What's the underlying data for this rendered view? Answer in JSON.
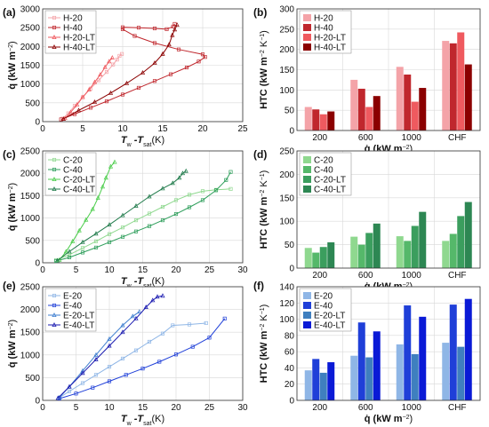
{
  "chart_data": [
    {
      "panel": "(a)",
      "type": "line",
      "xlim": [
        0,
        25
      ],
      "xticks": [
        0,
        5,
        10,
        15,
        20,
        25
      ],
      "ylim": [
        0,
        3000
      ],
      "yticks": [
        0,
        500,
        1000,
        1500,
        2000,
        2500,
        3000
      ],
      "grid": true,
      "legend": "top-left",
      "colors": [
        "#f4a3a8",
        "#c0272d",
        "#ef5a5f",
        "#8b0000"
      ],
      "series": [
        {
          "name": "H-20",
          "marker": "square",
          "points": [
            [
              2.5,
              80
            ],
            [
              3.2,
              220
            ],
            [
              4,
              420
            ],
            [
              5,
              650
            ],
            [
              6,
              880
            ],
            [
              7,
              1100
            ],
            [
              8,
              1320
            ],
            [
              8.8,
              1520
            ],
            [
              9.3,
              1650
            ],
            [
              9.6,
              1750
            ],
            [
              9.9,
              1800
            ]
          ]
        },
        {
          "name": "H-40",
          "marker": "square",
          "points": [
            [
              2.3,
              60
            ],
            [
              4,
              200
            ],
            [
              6,
              370
            ],
            [
              8,
              540
            ],
            [
              10,
              720
            ],
            [
              12,
              900
            ],
            [
              14,
              1080
            ],
            [
              16,
              1260
            ],
            [
              18,
              1440
            ],
            [
              19.5,
              1600
            ],
            [
              20.3,
              1720
            ],
            [
              20,
              1790
            ],
            [
              17,
              1920
            ],
            [
              14,
              2090
            ],
            [
              11.5,
              2280
            ],
            [
              10,
              2460
            ],
            [
              10,
              2510
            ],
            [
              12,
              2500
            ],
            [
              14,
              2480
            ],
            [
              15.5,
              2460
            ],
            [
              16.3,
              2530
            ],
            [
              16.5,
              2600
            ]
          ]
        },
        {
          "name": "H-20-LT",
          "marker": "triangle",
          "points": [
            [
              2.8,
              90
            ],
            [
              3.5,
              250
            ],
            [
              4.3,
              450
            ],
            [
              5,
              650
            ],
            [
              5.8,
              850
            ],
            [
              6.5,
              1050
            ],
            [
              7.2,
              1250
            ],
            [
              7.8,
              1450
            ],
            [
              8.3,
              1600
            ],
            [
              8.7,
              1700
            ]
          ]
        },
        {
          "name": "H-40-LT",
          "marker": "triangle",
          "points": [
            [
              2.6,
              70
            ],
            [
              4.5,
              300
            ],
            [
              6.5,
              520
            ],
            [
              8.5,
              760
            ],
            [
              10.5,
              1020
            ],
            [
              12.5,
              1300
            ],
            [
              14,
              1560
            ],
            [
              15,
              1800
            ],
            [
              15.8,
              2050
            ],
            [
              16.2,
              2300
            ],
            [
              16.5,
              2450
            ],
            [
              16.8,
              2570
            ]
          ]
        }
      ],
      "xlabel_main": "T",
      "xlabel_sub1": "w",
      "xlabel_mid": " -T",
      "xlabel_sub2": "sat",
      "xlabel_unit": "(K)",
      "ylabel_main": "q̇ (kW m",
      "ylabel_exp": "−2",
      "ylabel_end": ")"
    },
    {
      "panel": "(b)",
      "type": "bar",
      "categories": [
        "200",
        "600",
        "1000",
        "CHF"
      ],
      "ylim": [
        0,
        300
      ],
      "yticks": [
        0,
        50,
        100,
        150,
        200,
        250,
        300
      ],
      "grid": true,
      "legend": "top-left",
      "colors": [
        "#f4a3a8",
        "#c0272d",
        "#ef5a5f",
        "#8b0000"
      ],
      "series": [
        {
          "name": "H-20",
          "values": [
            58,
            125,
            157,
            221
          ]
        },
        {
          "name": "H-40",
          "values": [
            52,
            103,
            138,
            215
          ]
        },
        {
          "name": "H-20-LT",
          "values": [
            40,
            58,
            71,
            242
          ]
        },
        {
          "name": "H-40-LT",
          "values": [
            47,
            85,
            105,
            163
          ]
        }
      ],
      "xlabel_main": "q̇ (kW m",
      "xlabel_exp": "−2",
      "xlabel_end": ")",
      "ylabel_main": "HTC (kW m",
      "ylabel_exp1": "−2",
      "ylabel_mid": " K",
      "ylabel_exp2": "−1",
      "ylabel_end": ")"
    },
    {
      "panel": "(c)",
      "type": "line",
      "xlim": [
        0,
        30
      ],
      "xticks": [
        0,
        5,
        10,
        15,
        20,
        25,
        30
      ],
      "ylim": [
        0,
        2500
      ],
      "yticks": [
        0,
        500,
        1000,
        1500,
        2000,
        2500
      ],
      "grid": true,
      "legend": "top-left",
      "colors": [
        "#8fd88f",
        "#2e9e5b",
        "#4ccd4c",
        "#1f7a4a"
      ],
      "series": [
        {
          "name": "C-20",
          "marker": "square",
          "points": [
            [
              2,
              60
            ],
            [
              4,
              180
            ],
            [
              6,
              330
            ],
            [
              8,
              480
            ],
            [
              10,
              640
            ],
            [
              12,
              790
            ],
            [
              14,
              950
            ],
            [
              16,
              1100
            ],
            [
              18,
              1250
            ],
            [
              20,
              1400
            ],
            [
              22,
              1520
            ],
            [
              24,
              1600
            ],
            [
              26,
              1630
            ],
            [
              28.2,
              1650
            ]
          ]
        },
        {
          "name": "C-40",
          "marker": "square",
          "points": [
            [
              2,
              40
            ],
            [
              4,
              120
            ],
            [
              6,
              230
            ],
            [
              8,
              340
            ],
            [
              10,
              460
            ],
            [
              12,
              580
            ],
            [
              14,
              700
            ],
            [
              16,
              820
            ],
            [
              18,
              950
            ],
            [
              20,
              1090
            ],
            [
              22,
              1240
            ],
            [
              24,
              1400
            ],
            [
              26,
              1620
            ],
            [
              27.5,
              1850
            ],
            [
              28.2,
              2030
            ]
          ]
        },
        {
          "name": "C-20-LT",
          "marker": "triangle",
          "points": [
            [
              2.5,
              60
            ],
            [
              3.5,
              250
            ],
            [
              4.5,
              480
            ],
            [
              5.5,
              720
            ],
            [
              6.5,
              960
            ],
            [
              7.5,
              1200
            ],
            [
              8.3,
              1450
            ],
            [
              9,
              1700
            ],
            [
              9.5,
              1900
            ],
            [
              10.2,
              2150
            ],
            [
              10.8,
              2250
            ]
          ]
        },
        {
          "name": "C-40-LT",
          "marker": "triangle",
          "points": [
            [
              2.2,
              50
            ],
            [
              4,
              250
            ],
            [
              6,
              460
            ],
            [
              8,
              650
            ],
            [
              10,
              850
            ],
            [
              12,
              1060
            ],
            [
              14,
              1270
            ],
            [
              16,
              1480
            ],
            [
              18,
              1660
            ],
            [
              19.5,
              1780
            ],
            [
              20.5,
              1900
            ],
            [
              21,
              2000
            ],
            [
              21.5,
              2050
            ]
          ]
        }
      ],
      "xlabel_main": "T",
      "xlabel_sub1": "w",
      "xlabel_mid": " -T",
      "xlabel_sub2": "sat",
      "xlabel_unit": "(K)",
      "ylabel_main": "q̇ (kW m",
      "ylabel_exp": "−2",
      "ylabel_end": ")"
    },
    {
      "panel": "(d)",
      "type": "bar",
      "categories": [
        "200",
        "600",
        "1000",
        "CHF"
      ],
      "ylim": [
        0,
        250
      ],
      "yticks": [
        0,
        50,
        100,
        150,
        200,
        250
      ],
      "grid": true,
      "legend": "top-left",
      "colors": [
        "#8fd88f",
        "#55b86a",
        "#3b9e5e",
        "#2d8753"
      ],
      "series": [
        {
          "name": "C-20",
          "values": [
            43,
            67,
            68,
            58
          ]
        },
        {
          "name": "C-40",
          "values": [
            33,
            50,
            58,
            73
          ]
        },
        {
          "name": "C-20-LT",
          "values": [
            45,
            75,
            90,
            111
          ]
        },
        {
          "name": "C-40-LT",
          "values": [
            55,
            95,
            120,
            141
          ]
        }
      ],
      "xlabel_main": "q̇ (kW m",
      "xlabel_exp": "−2",
      "xlabel_end": ")",
      "ylabel_main": "HTC (kW m",
      "ylabel_exp1": "−2",
      "ylabel_mid": " K",
      "ylabel_exp2": "−1",
      "ylabel_end": ")"
    },
    {
      "panel": "(e)",
      "type": "line",
      "xlim": [
        0,
        30
      ],
      "xticks": [
        0,
        5,
        10,
        15,
        20,
        25,
        30
      ],
      "ylim": [
        0,
        2500
      ],
      "yticks": [
        0,
        500,
        1000,
        1500,
        2000,
        2500
      ],
      "grid": true,
      "legend": "top-left",
      "colors": [
        "#8fb6e6",
        "#1f3fd8",
        "#3f7fd0",
        "#1a1ab0"
      ],
      "series": [
        {
          "name": "E-20",
          "marker": "square",
          "points": [
            [
              2.5,
              60
            ],
            [
              4,
              200
            ],
            [
              6,
              380
            ],
            [
              8,
              560
            ],
            [
              10,
              740
            ],
            [
              12,
              920
            ],
            [
              14,
              1100
            ],
            [
              16,
              1290
            ],
            [
              18,
              1470
            ],
            [
              19.5,
              1650
            ],
            [
              22,
              1670
            ],
            [
              24.5,
              1700
            ]
          ]
        },
        {
          "name": "E-40",
          "marker": "square",
          "points": [
            [
              2.5,
              40
            ],
            [
              5,
              150
            ],
            [
              7.5,
              280
            ],
            [
              10,
              420
            ],
            [
              12.5,
              560
            ],
            [
              15,
              700
            ],
            [
              17.5,
              850
            ],
            [
              20,
              1010
            ],
            [
              22.5,
              1180
            ],
            [
              25,
              1380
            ],
            [
              27.3,
              1800
            ]
          ]
        },
        {
          "name": "E-20-LT",
          "marker": "triangle",
          "points": [
            [
              2.5,
              60
            ],
            [
              4,
              300
            ],
            [
              6,
              650
            ],
            [
              8,
              1000
            ],
            [
              10,
              1350
            ],
            [
              12,
              1650
            ],
            [
              13.5,
              1850
            ],
            [
              14.5,
              1950
            ]
          ]
        },
        {
          "name": "E-40-LT",
          "marker": "triangle",
          "points": [
            [
              2.3,
              50
            ],
            [
              4,
              300
            ],
            [
              6,
              600
            ],
            [
              8,
              900
            ],
            [
              10,
              1200
            ],
            [
              12,
              1500
            ],
            [
              14,
              1800
            ],
            [
              15.5,
              2050
            ],
            [
              16.5,
              2200
            ],
            [
              17.2,
              2280
            ],
            [
              18,
              2300
            ]
          ]
        }
      ],
      "xlabel_main": "T",
      "xlabel_sub1": "w",
      "xlabel_mid": " -T",
      "xlabel_sub2": "sat",
      "xlabel_unit": "(K)",
      "ylabel_main": "q̇ (kW m",
      "ylabel_exp": "−2",
      "ylabel_end": ")"
    },
    {
      "panel": "(f)",
      "type": "bar",
      "categories": [
        "200",
        "600",
        "1000",
        "CHF"
      ],
      "ylim": [
        0,
        140
      ],
      "yticks": [
        0,
        20,
        40,
        60,
        80,
        100,
        120,
        140
      ],
      "grid": true,
      "legend": "top-left",
      "colors": [
        "#8fb6e6",
        "#1f3fd8",
        "#3f7fbf",
        "#0a1ad6"
      ],
      "series": [
        {
          "name": "E-20",
          "values": [
            37,
            55,
            69,
            71
          ]
        },
        {
          "name": "E-40",
          "values": [
            51,
            96,
            117,
            118
          ]
        },
        {
          "name": "E-20-LT",
          "values": [
            34,
            53,
            57,
            66
          ]
        },
        {
          "name": "E-40-LT",
          "values": [
            47,
            85,
            103,
            125
          ]
        }
      ],
      "xlabel_main": "q̇ (kW m",
      "xlabel_exp": "−2",
      "xlabel_end": ")",
      "ylabel_main": "HTC (kW m",
      "ylabel_exp1": "−2",
      "ylabel_mid": " K",
      "ylabel_exp2": "−1",
      "ylabel_end": ")"
    }
  ]
}
